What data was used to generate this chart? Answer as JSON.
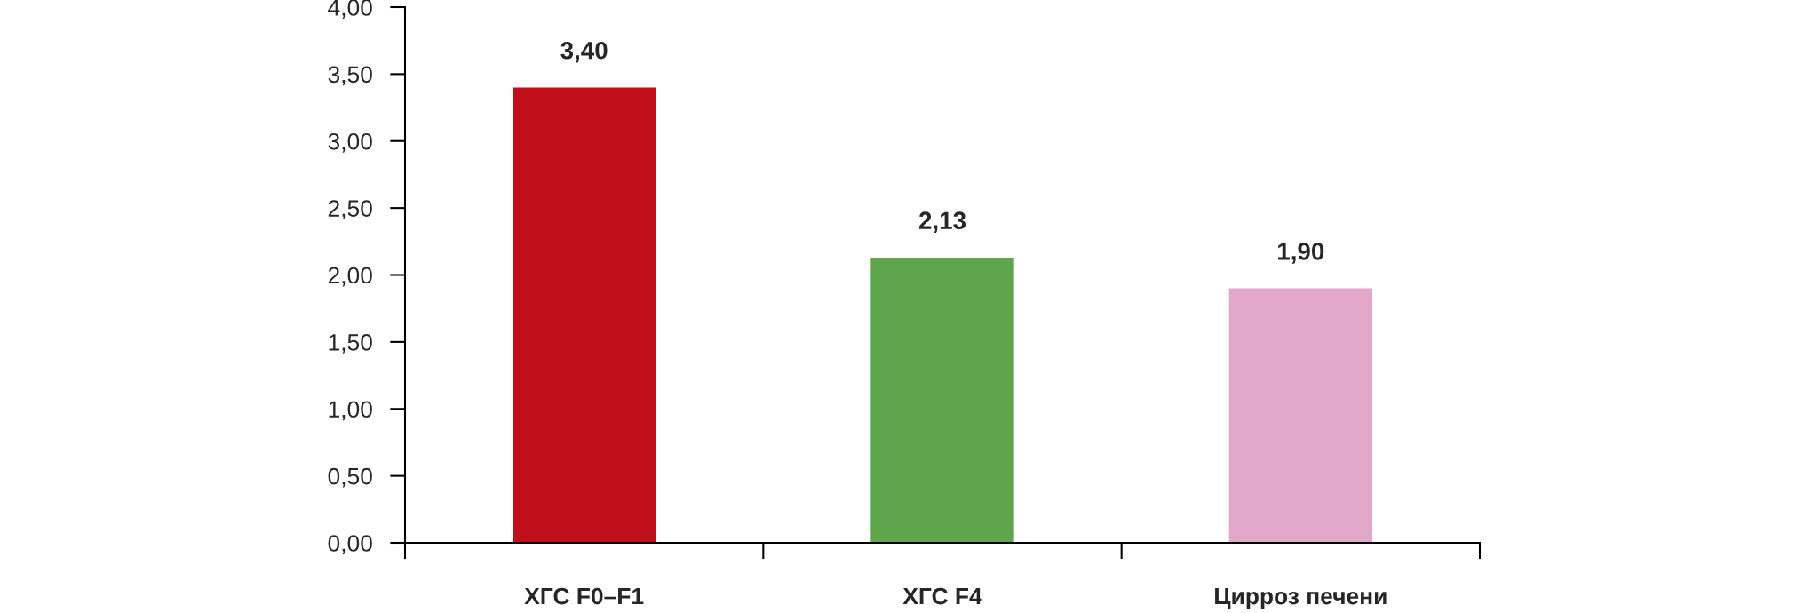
{
  "chart_data": {
    "type": "bar",
    "categories": [
      "ХГС F0–F1",
      "ХГС F4",
      "Цирроз печени"
    ],
    "values": [
      3.4,
      2.13,
      1.9
    ],
    "colors": [
      "#c00f1b",
      "#5fa54b",
      "#e1a8ca"
    ],
    "value_labels": [
      "3,40",
      "2,13",
      "1,90"
    ],
    "ylim": [
      0,
      4
    ],
    "yticks": [
      {
        "value": 0,
        "label": "0,00"
      },
      {
        "value": 0.5,
        "label": "0,50"
      },
      {
        "value": 1,
        "label": "1,00"
      },
      {
        "value": 1.5,
        "label": "1,50"
      },
      {
        "value": 2,
        "label": "2,00"
      },
      {
        "value": 2.5,
        "label": "2,50"
      },
      {
        "value": 3,
        "label": "3,00"
      },
      {
        "value": 3.5,
        "label": "3,50"
      },
      {
        "value": 4,
        "label": "4,00"
      }
    ]
  }
}
